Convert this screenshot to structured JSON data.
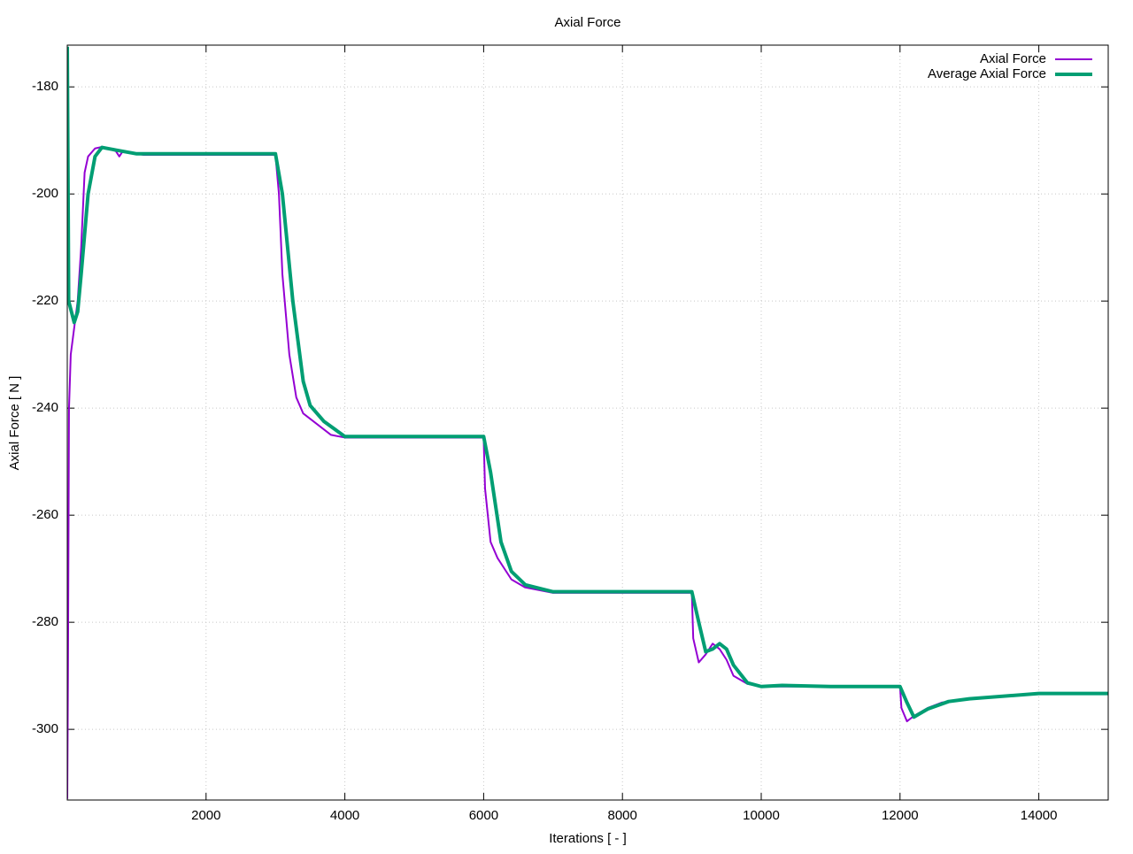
{
  "chart_data": {
    "type": "line",
    "title": "Axial Force",
    "x_label": "Iterations [ - ]",
    "y_label": "Axial Force [ N ]",
    "xlim": [
      0,
      15000
    ],
    "ylim": [
      -313.2,
      -172.2
    ],
    "xticks": [
      2000,
      4000,
      6000,
      8000,
      10000,
      12000,
      14000
    ],
    "yticks": [
      -300,
      -280,
      -260,
      -240,
      -220,
      -200,
      -180
    ],
    "grid": true,
    "legend": "top-right",
    "series": [
      {
        "name": "Axial Force",
        "color": "#9400d3",
        "width": 2,
        "x": [
          0,
          10,
          25,
          50,
          100,
          150,
          200,
          250,
          300,
          400,
          500,
          600,
          700,
          750,
          800,
          1000,
          1100,
          2000,
          3000,
          3050,
          3100,
          3200,
          3300,
          3400,
          3600,
          3800,
          4000,
          4400,
          6000,
          6020,
          6100,
          6200,
          6400,
          6600,
          7000,
          9000,
          9020,
          9100,
          9200,
          9300,
          9400,
          9500,
          9600,
          9800,
          10000,
          10500,
          11000,
          12000,
          12020,
          12100,
          12200,
          12400,
          12600,
          13000,
          13500,
          14000,
          15000
        ],
        "values": [
          -313,
          -290,
          -240,
          -230,
          -225,
          -220,
          -210,
          -196,
          -193,
          -191.5,
          -191.2,
          -191.5,
          -192,
          -193,
          -192,
          -192.5,
          -192.7,
          -192.7,
          -192.7,
          -200,
          -215,
          -230,
          -238,
          -241,
          -243,
          -245,
          -245.5,
          -245.5,
          -245.5,
          -255,
          -265,
          -268,
          -272,
          -273.5,
          -274.5,
          -274.5,
          -283,
          -287.5,
          -286,
          -284,
          -285,
          -287,
          -290,
          -291.5,
          -292,
          -292,
          -292,
          -292,
          -296,
          -298.5,
          -297.5,
          -296,
          -295,
          -294.3,
          -293.8,
          -293.3,
          -293.3
        ]
      },
      {
        "name": "Average Axial Force",
        "color": "#009e73",
        "width": 4,
        "x": [
          0,
          10,
          20,
          60,
          100,
          150,
          200,
          300,
          400,
          500,
          700,
          1000,
          3000,
          3100,
          3250,
          3400,
          3500,
          3700,
          4000,
          6000,
          6100,
          6250,
          6400,
          6600,
          7000,
          9000,
          9100,
          9200,
          9300,
          9400,
          9500,
          9600,
          9800,
          10000,
          10300,
          11000,
          12000,
          12100,
          12200,
          12400,
          12700,
          13000,
          14000,
          15000
        ],
        "values": [
          -172.5,
          -195,
          -220,
          -222,
          -224,
          -222,
          -215,
          -200,
          -193,
          -191.3,
          -191.8,
          -192.5,
          -192.5,
          -200,
          -220,
          -235,
          -239.5,
          -242.5,
          -245.3,
          -245.3,
          -252,
          -265,
          -270.5,
          -273,
          -274.3,
          -274.3,
          -280,
          -285.5,
          -285,
          -284,
          -285,
          -288,
          -291.3,
          -292,
          -291.8,
          -292,
          -292,
          -295,
          -297.7,
          -296.2,
          -294.8,
          -294.3,
          -293.3,
          -293.3
        ]
      }
    ]
  }
}
